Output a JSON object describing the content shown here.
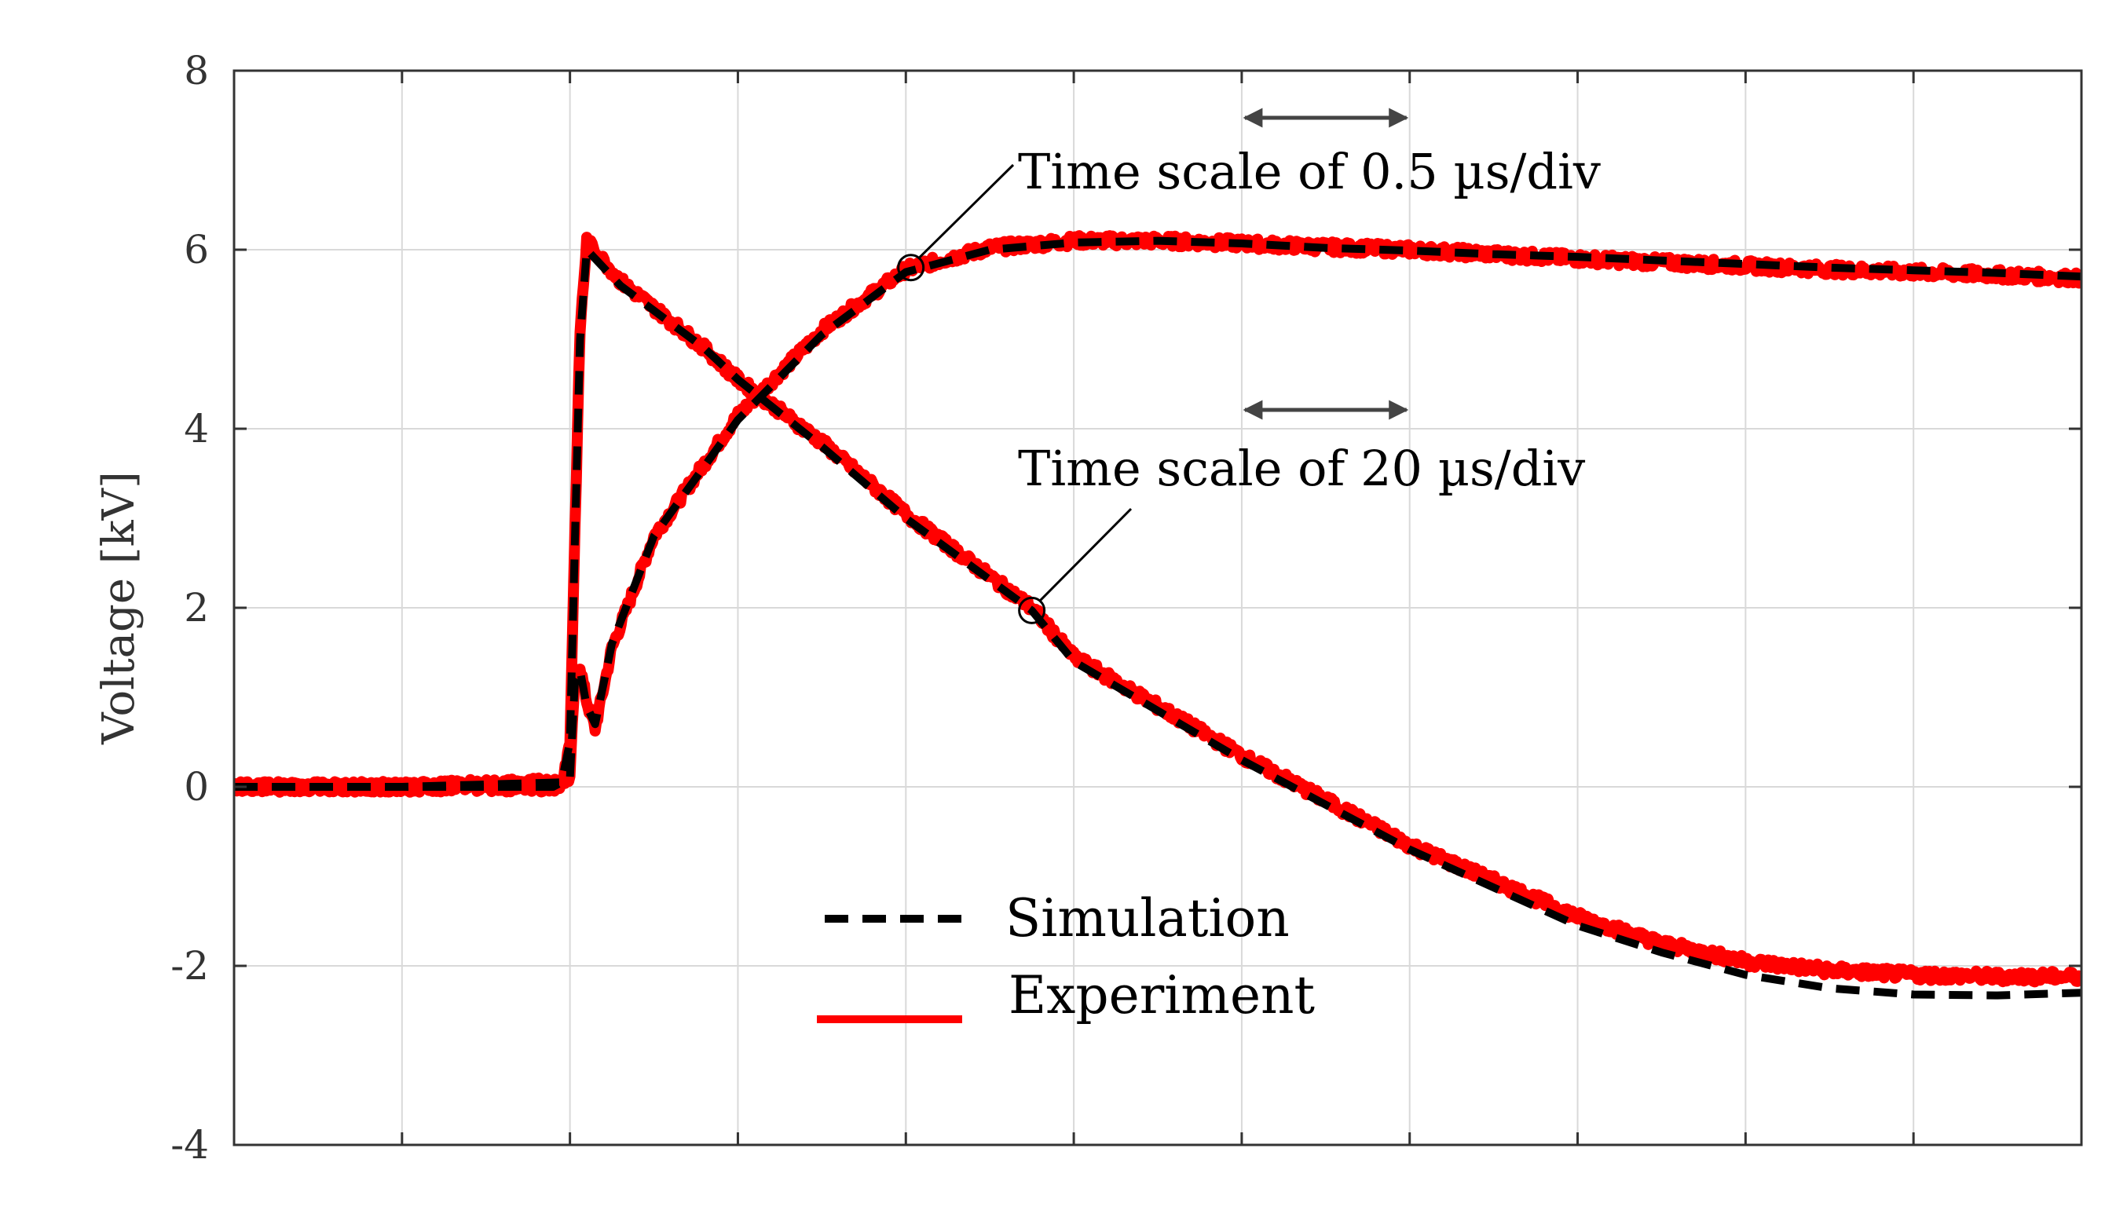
{
  "chart_data": {
    "type": "line",
    "title": "",
    "xlabel": "",
    "ylabel": "Voltage [kV]",
    "xlim": [
      0,
      11
    ],
    "ylim": [
      -4,
      8
    ],
    "yticks": [
      "-4",
      "-2",
      "0",
      "2",
      "4",
      "6",
      "8"
    ],
    "grid": true,
    "legend_position": "bottom-center",
    "colors": {
      "simulation": "#000000",
      "experiment": "#ff0000",
      "grid": "#d9d9d9",
      "axis": "#333333"
    },
    "annotations": [
      {
        "text": "Time scale of 0.5 µs/div",
        "point_x": 4.03,
        "point_y": 5.8
      },
      {
        "text": "Time scale of 20 µs/div",
        "point_x": 4.75,
        "point_y": 1.97
      }
    ],
    "scale_arrow_span": [
      6.0,
      7.0
    ],
    "series": [
      {
        "name": "Simulation",
        "style": "dashed",
        "curves": [
          {
            "label": "0.5 µs/div waveform",
            "x": [
              0,
              1.0,
              1.9,
              2.0,
              2.03,
              2.06,
              2.1,
              2.15,
              2.25,
              2.5,
              3.0,
              3.5,
              4.0,
              4.5,
              5.0,
              5.5,
              6.0,
              6.5,
              7.0,
              7.5,
              8.0,
              8.5,
              9.0,
              9.5,
              10.0,
              10.5,
              11.0
            ],
            "y": [
              0,
              0,
              0,
              0.1,
              1.2,
              1.3,
              0.9,
              0.7,
              1.6,
              2.8,
              4.1,
              5.05,
              5.75,
              6.0,
              6.08,
              6.1,
              6.07,
              6.02,
              5.99,
              5.95,
              5.92,
              5.88,
              5.84,
              5.8,
              5.77,
              5.74,
              5.7
            ]
          },
          {
            "label": "20 µs/div waveform",
            "x": [
              0,
              1.0,
              1.95,
              2.0,
              2.03,
              2.06,
              2.1,
              2.3,
              2.8,
              3.0,
              3.5,
              4.0,
              4.75,
              5.0,
              6.0,
              7.0,
              8.0,
              8.5,
              9.0,
              9.5,
              10.0,
              10.5,
              11.0
            ],
            "y": [
              0,
              0,
              0.05,
              0.5,
              2.8,
              5.0,
              6.0,
              5.6,
              4.9,
              4.55,
              3.8,
              3.0,
              1.97,
              1.4,
              0.3,
              -0.7,
              -1.55,
              -1.85,
              -2.1,
              -2.25,
              -2.32,
              -2.33,
              -2.3
            ]
          }
        ]
      },
      {
        "name": "Experiment",
        "style": "solid",
        "curves": [
          {
            "label": "0.5 µs/div waveform",
            "x": [
              0,
              1.0,
              1.9,
              2.0,
              2.03,
              2.06,
              2.1,
              2.15,
              2.25,
              2.5,
              3.0,
              3.5,
              4.0,
              4.5,
              5.0,
              5.5,
              6.0,
              6.5,
              7.0,
              7.5,
              8.0,
              8.5,
              9.0,
              9.5,
              10.0,
              10.5,
              11.0
            ],
            "y": [
              0,
              0,
              0,
              0.1,
              1.25,
              1.35,
              0.95,
              0.65,
              1.55,
              2.8,
              4.15,
              5.1,
              5.78,
              6.02,
              6.1,
              6.1,
              6.07,
              6.03,
              6.0,
              5.95,
              5.9,
              5.86,
              5.82,
              5.78,
              5.75,
              5.72,
              5.68
            ]
          },
          {
            "label": "20 µs/div waveform",
            "x": [
              0,
              1.0,
              1.95,
              2.0,
              2.03,
              2.06,
              2.1,
              2.3,
              2.8,
              3.0,
              3.5,
              4.0,
              4.75,
              5.0,
              6.0,
              7.0,
              8.0,
              8.5,
              9.0,
              9.5,
              10.0,
              10.5,
              11.0
            ],
            "y": [
              0,
              0,
              0.05,
              0.5,
              2.9,
              5.1,
              6.1,
              5.65,
              4.9,
              4.55,
              3.85,
              3.05,
              2.0,
              1.45,
              0.35,
              -0.65,
              -1.45,
              -1.75,
              -1.95,
              -2.05,
              -2.1,
              -2.12,
              -2.12
            ]
          }
        ]
      }
    ]
  }
}
